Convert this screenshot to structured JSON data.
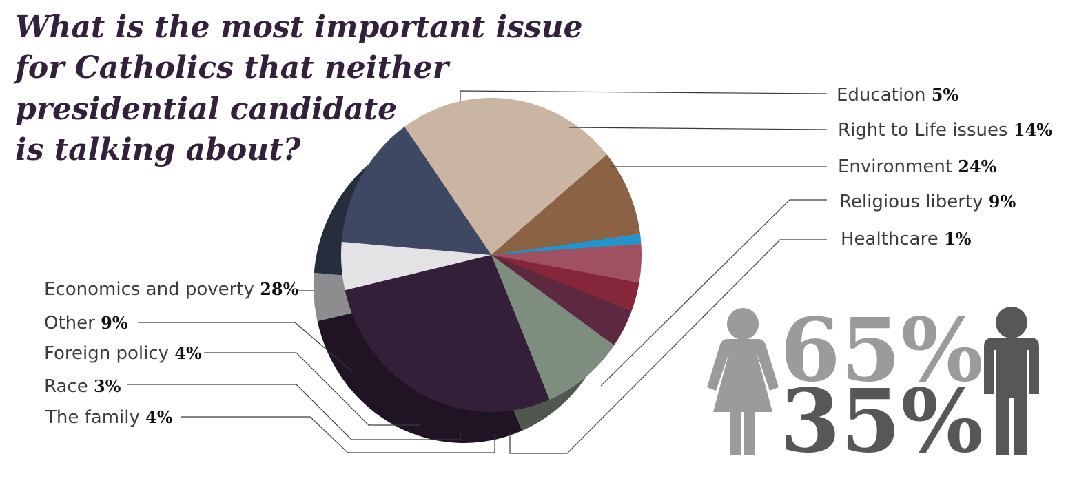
{
  "title": "What is the most important issue for Catholics that neither presidential candidate is talking about?",
  "chart_data": {
    "type": "pie",
    "title": "What is the most important issue for Catholics that neither presidential candidate is talking about?",
    "slices": [
      {
        "label": "Education",
        "value": 5,
        "display": "5%",
        "color": "#e3e3e6"
      },
      {
        "label": "Right to Life issues",
        "value": 14,
        "display": "14%",
        "color": "#3e4863"
      },
      {
        "label": "Environment",
        "value": 24,
        "display": "24%",
        "color": "#c9b5a1"
      },
      {
        "label": "Religious liberty",
        "value": 9,
        "display": "9%",
        "color": "#8c6244"
      },
      {
        "label": "Healthcare",
        "value": 1,
        "display": "1%",
        "color": "#1f95cf"
      },
      {
        "label": "The family",
        "value": 4,
        "display": "4%",
        "color": "#a05161"
      },
      {
        "label": "Race",
        "value": 3,
        "display": "3%",
        "color": "#86263a"
      },
      {
        "label": "Foreign policy",
        "value": 4,
        "display": "4%",
        "color": "#5e2940"
      },
      {
        "label": "Other",
        "value": 9,
        "display": "9%",
        "color": "#7e8e7e"
      },
      {
        "label": "Economics and poverty",
        "value": 28,
        "display": "28%",
        "color": "#331f38"
      }
    ]
  },
  "gender": {
    "female": {
      "value": "65%",
      "color": "#9b9b9b",
      "icon": "woman-icon"
    },
    "male": {
      "value": "35%",
      "color": "#575757",
      "icon": "man-icon"
    }
  }
}
